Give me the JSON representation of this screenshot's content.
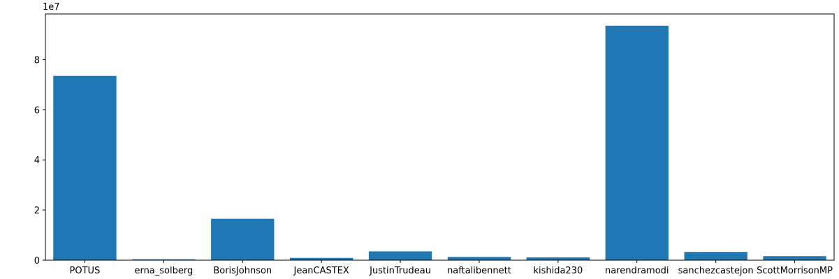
{
  "chart_data": {
    "type": "bar",
    "title": "",
    "xlabel": "",
    "ylabel": "",
    "offset_label": "1e7",
    "categories": [
      "POTUS",
      "erna_solberg",
      "BorisJohnson",
      "JeanCASTEX",
      "JustinTrudeau",
      "naftalibennett",
      "kishida230",
      "narendramodi",
      "sanchezcastejon",
      "ScottMorrisonMP"
    ],
    "values": [
      73500000,
      350000,
      16500000,
      900000,
      3500000,
      1300000,
      1100000,
      93500000,
      3300000,
      1600000
    ],
    "ylim": [
      0,
      98200000
    ],
    "yticks": [
      0,
      20000000,
      40000000,
      60000000,
      80000000
    ],
    "ytick_labels": [
      "0",
      "2",
      "4",
      "6",
      "8"
    ],
    "bar_color": "#1f77b4",
    "grid": false,
    "legend": "none"
  }
}
